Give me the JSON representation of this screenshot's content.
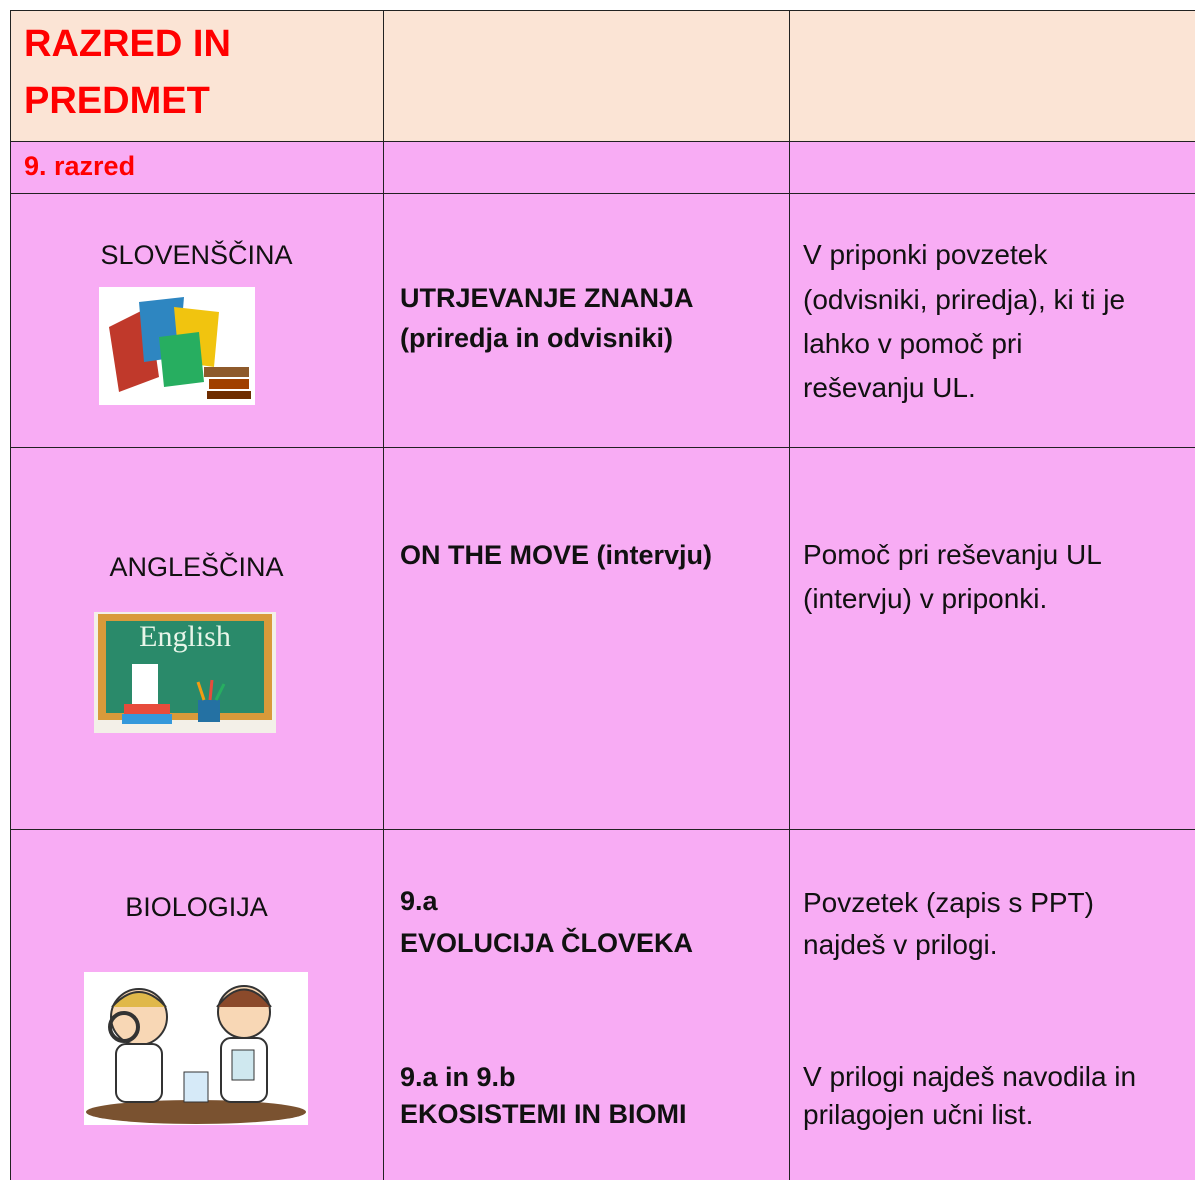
{
  "table": {
    "header": {
      "title": [
        "RAZRED IN",
        "PREDMET"
      ]
    },
    "grade": "9. razred",
    "rows": [
      {
        "subject": "SLOVENŠČINA",
        "blocks": [
          {
            "topic": [
              "UTRJEVANJE ZNANJA",
              "(priredja in odvisniki)"
            ],
            "note": [
              "V priponki povzetek",
              "(odvisniki, priredja), ki ti je",
              "lahko v pomoč pri",
              "reševanju UL."
            ]
          }
        ]
      },
      {
        "subject": "ANGLEŠČINA",
        "image_text": "English",
        "blocks": [
          {
            "topic": [
              "ON THE MOVE (intervju)"
            ],
            "note": [
              "Pomoč pri reševanju UL",
              "(intervju) v priponki."
            ]
          }
        ]
      },
      {
        "subject": "BIOLOGIJA",
        "blocks": [
          {
            "topic": [
              "9.a",
              "EVOLUCIJA ČLOVEKA"
            ],
            "note": [
              "Povzetek (zapis s PPT)",
              "najdeš v prilogi."
            ]
          },
          {
            "topic": [
              "9.a in 9.b",
              "EKOSISTEMI IN BIOMI"
            ],
            "note": [
              "V prilogi najdeš navodila in",
              "prilagojen učni list."
            ]
          }
        ]
      }
    ]
  }
}
